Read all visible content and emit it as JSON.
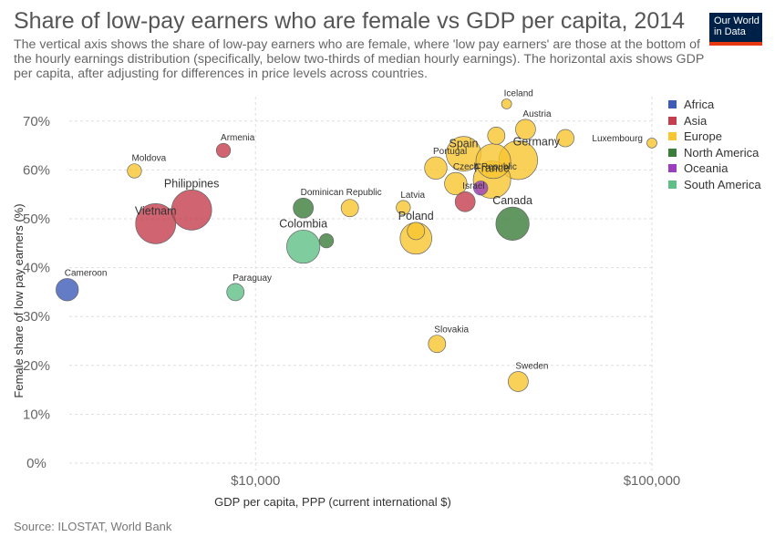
{
  "header": {
    "title": "Share of low-pay earners who are female vs GDP per capita, 2014",
    "subtitle": "The vertical axis shows the share of low-pay earners who are female, where 'low pay earners' are those at the bottom of the hourly earnings distribution (specifically, below two-thirds of median hourly earnings). The horizontal axis shows GDP per capita, after adjusting for differences in price levels across countries.",
    "logo_line1": "Our World",
    "logo_line2": "in Data"
  },
  "footer": {
    "source": "Source: ILOSTAT, World Bank"
  },
  "colors": {
    "Africa": "#3d5bb7",
    "Asia": "#c63d4d",
    "Europe": "#f8c630",
    "North America": "#3b7d3a",
    "Oceania": "#9a3dbf",
    "South America": "#5fbf87"
  },
  "chart_data": {
    "type": "scatter",
    "xlabel": "GDP per capita, PPP (current international $)",
    "ylabel": "Female share of low pay earners (%)",
    "x_scale": "log",
    "x_ticks": [
      {
        "value": 10000,
        "label": "$10,000"
      },
      {
        "value": 100000,
        "label": "$100,000"
      }
    ],
    "y_ticks": [
      {
        "value": 0,
        "label": "0%"
      },
      {
        "value": 10,
        "label": "10%"
      },
      {
        "value": 20,
        "label": "20%"
      },
      {
        "value": 30,
        "label": "30%"
      },
      {
        "value": 40,
        "label": "40%"
      },
      {
        "value": 50,
        "label": "50%"
      },
      {
        "value": 60,
        "label": "60%"
      },
      {
        "value": 70,
        "label": "70%"
      }
    ],
    "xlim": [
      3250,
      100000
    ],
    "ylim": [
      0,
      75
    ],
    "grid": true,
    "legend_position": "right",
    "legend": [
      "Africa",
      "Asia",
      "Europe",
      "North America",
      "Oceania",
      "South America"
    ],
    "points": [
      {
        "label": "Cameroon",
        "region": "Africa",
        "x": 3350,
        "y": 35.5,
        "pop_weight": 5
      },
      {
        "label": "Moldova",
        "region": "Europe",
        "x": 4950,
        "y": 59.8,
        "pop_weight": 2
      },
      {
        "label": "Armenia",
        "region": "Asia",
        "x": 8300,
        "y": 64,
        "pop_weight": 2
      },
      {
        "label": "Vietnam",
        "region": "Asia",
        "x": 5600,
        "y": 49,
        "pop_weight": 16
      },
      {
        "label": "Philippines",
        "region": "Asia",
        "x": 6900,
        "y": 51.8,
        "pop_weight": 16
      },
      {
        "label": "Paraguay",
        "region": "South America",
        "x": 8900,
        "y": 35,
        "pop_weight": 3
      },
      {
        "label": "Dominican Republic",
        "region": "North America",
        "x": 13200,
        "y": 52.2,
        "pop_weight": 4
      },
      {
        "label": "Colombia",
        "region": "South America",
        "x": 13200,
        "y": 44.3,
        "pop_weight": 11
      },
      {
        "label": "",
        "region": "North America",
        "x": 15100,
        "y": 45.5,
        "pop_weight": 2
      },
      {
        "label": "",
        "region": "Europe",
        "x": 17300,
        "y": 52.2,
        "pop_weight": 3
      },
      {
        "label": "Latvia",
        "region": "Europe",
        "x": 23600,
        "y": 52.3,
        "pop_weight": 2
      },
      {
        "label": "Poland",
        "region": "Europe",
        "x": 25400,
        "y": 46,
        "pop_weight": 10
      },
      {
        "label": "",
        "region": "Europe",
        "x": 25400,
        "y": 47.5,
        "pop_weight": 3
      },
      {
        "label": "Portugal",
        "region": "Europe",
        "x": 28500,
        "y": 60.4,
        "pop_weight": 5
      },
      {
        "label": "Slovakia",
        "region": "Europe",
        "x": 28700,
        "y": 24.4,
        "pop_weight": 3
      },
      {
        "label": "Czech Republic",
        "region": "Europe",
        "x": 32000,
        "y": 57.2,
        "pop_weight": 5
      },
      {
        "label": "Spain",
        "region": "Europe",
        "x": 33500,
        "y": 63.3,
        "pop_weight": 12
      },
      {
        "label": "Israel",
        "region": "Asia",
        "x": 33800,
        "y": 53.5,
        "pop_weight": 4
      },
      {
        "label": "",
        "region": "Oceania",
        "x": 37000,
        "y": 56.3,
        "pop_weight": 2
      },
      {
        "label": "France",
        "region": "Europe",
        "x": 39500,
        "y": 58,
        "pop_weight": 14
      },
      {
        "label": "",
        "region": "Europe",
        "x": 39800,
        "y": 61.8,
        "pop_weight": 12
      },
      {
        "label": "Iceland",
        "region": "Europe",
        "x": 43000,
        "y": 73.5,
        "pop_weight": 1
      },
      {
        "label": "",
        "region": "Europe",
        "x": 40500,
        "y": 67,
        "pop_weight": 3
      },
      {
        "label": "Austria",
        "region": "Europe",
        "x": 48000,
        "y": 68.3,
        "pop_weight": 4
      },
      {
        "label": "Germany",
        "region": "Europe",
        "x": 46000,
        "y": 62,
        "pop_weight": 15
      },
      {
        "label": "Canada",
        "region": "North America",
        "x": 44500,
        "y": 49,
        "pop_weight": 11
      },
      {
        "label": "Sweden",
        "region": "Europe",
        "x": 46000,
        "y": 16.7,
        "pop_weight": 4
      },
      {
        "label": "",
        "region": "Europe",
        "x": 60500,
        "y": 66.5,
        "pop_weight": 3
      },
      {
        "label": "Luxembourg",
        "region": "Europe",
        "x": 100000,
        "y": 65.5,
        "pop_weight": 1
      }
    ]
  }
}
